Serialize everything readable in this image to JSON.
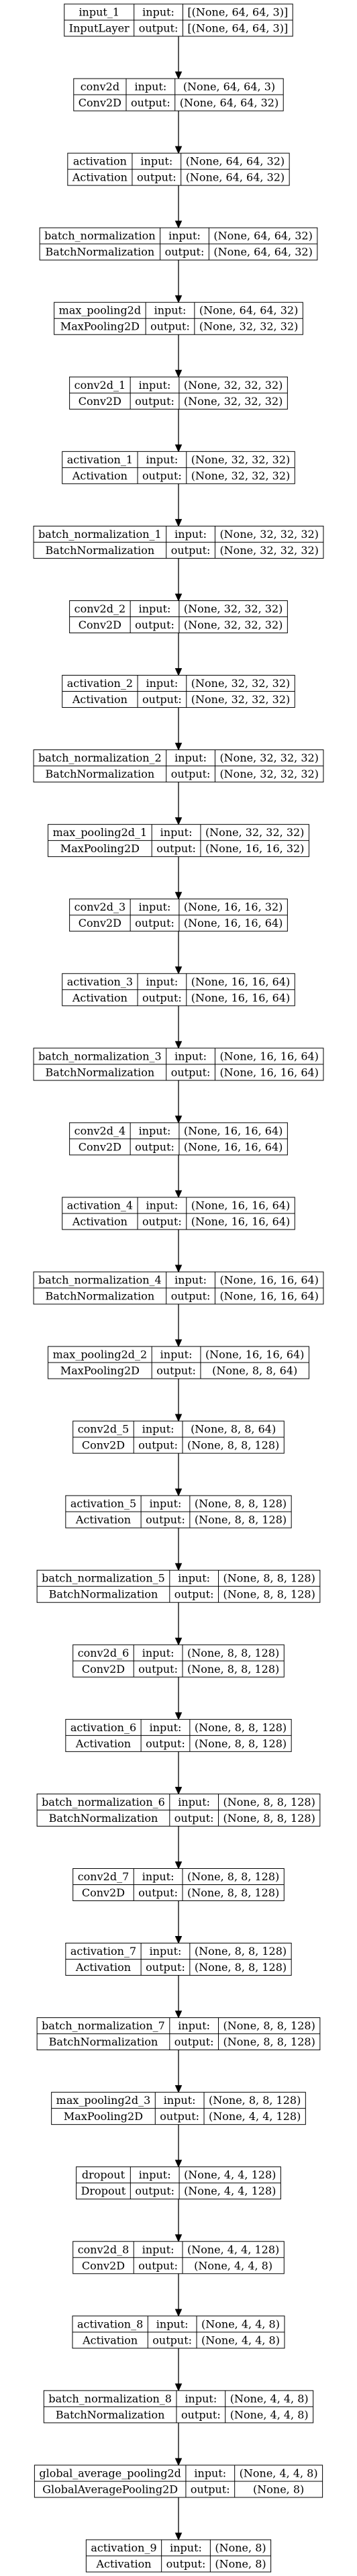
{
  "labels": {
    "input": "input:",
    "output": "output:"
  },
  "layers": [
    {
      "name": "input_1",
      "type": "InputLayer",
      "input": "[(None, 64, 64, 3)]",
      "output": "[(None, 64, 64, 3)]"
    },
    {
      "name": "conv2d",
      "type": "Conv2D",
      "input": "(None, 64, 64, 3)",
      "output": "(None, 64, 64, 32)"
    },
    {
      "name": "activation",
      "type": "Activation",
      "input": "(None, 64, 64, 32)",
      "output": "(None, 64, 64, 32)"
    },
    {
      "name": "batch_normalization",
      "type": "BatchNormalization",
      "input": "(None, 64, 64, 32)",
      "output": "(None, 64, 64, 32)"
    },
    {
      "name": "max_pooling2d",
      "type": "MaxPooling2D",
      "input": "(None, 64, 64, 32)",
      "output": "(None, 32, 32, 32)"
    },
    {
      "name": "conv2d_1",
      "type": "Conv2D",
      "input": "(None, 32, 32, 32)",
      "output": "(None, 32, 32, 32)"
    },
    {
      "name": "activation_1",
      "type": "Activation",
      "input": "(None, 32, 32, 32)",
      "output": "(None, 32, 32, 32)"
    },
    {
      "name": "batch_normalization_1",
      "type": "BatchNormalization",
      "input": "(None, 32, 32, 32)",
      "output": "(None, 32, 32, 32)"
    },
    {
      "name": "conv2d_2",
      "type": "Conv2D",
      "input": "(None, 32, 32, 32)",
      "output": "(None, 32, 32, 32)"
    },
    {
      "name": "activation_2",
      "type": "Activation",
      "input": "(None, 32, 32, 32)",
      "output": "(None, 32, 32, 32)"
    },
    {
      "name": "batch_normalization_2",
      "type": "BatchNormalization",
      "input": "(None, 32, 32, 32)",
      "output": "(None, 32, 32, 32)"
    },
    {
      "name": "max_pooling2d_1",
      "type": "MaxPooling2D",
      "input": "(None, 32, 32, 32)",
      "output": "(None, 16, 16, 32)"
    },
    {
      "name": "conv2d_3",
      "type": "Conv2D",
      "input": "(None, 16, 16, 32)",
      "output": "(None, 16, 16, 64)"
    },
    {
      "name": "activation_3",
      "type": "Activation",
      "input": "(None, 16, 16, 64)",
      "output": "(None, 16, 16, 64)"
    },
    {
      "name": "batch_normalization_3",
      "type": "BatchNormalization",
      "input": "(None, 16, 16, 64)",
      "output": "(None, 16, 16, 64)"
    },
    {
      "name": "conv2d_4",
      "type": "Conv2D",
      "input": "(None, 16, 16, 64)",
      "output": "(None, 16, 16, 64)"
    },
    {
      "name": "activation_4",
      "type": "Activation",
      "input": "(None, 16, 16, 64)",
      "output": "(None, 16, 16, 64)"
    },
    {
      "name": "batch_normalization_4",
      "type": "BatchNormalization",
      "input": "(None, 16, 16, 64)",
      "output": "(None, 16, 16, 64)"
    },
    {
      "name": "max_pooling2d_2",
      "type": "MaxPooling2D",
      "input": "(None, 16, 16, 64)",
      "output": "(None, 8, 8, 64)"
    },
    {
      "name": "conv2d_5",
      "type": "Conv2D",
      "input": "(None, 8, 8, 64)",
      "output": "(None, 8, 8, 128)"
    },
    {
      "name": "activation_5",
      "type": "Activation",
      "input": "(None, 8, 8, 128)",
      "output": "(None, 8, 8, 128)"
    },
    {
      "name": "batch_normalization_5",
      "type": "BatchNormalization",
      "input": "(None, 8, 8, 128)",
      "output": "(None, 8, 8, 128)"
    },
    {
      "name": "conv2d_6",
      "type": "Conv2D",
      "input": "(None, 8, 8, 128)",
      "output": "(None, 8, 8, 128)"
    },
    {
      "name": "activation_6",
      "type": "Activation",
      "input": "(None, 8, 8, 128)",
      "output": "(None, 8, 8, 128)"
    },
    {
      "name": "batch_normalization_6",
      "type": "BatchNormalization",
      "input": "(None, 8, 8, 128)",
      "output": "(None, 8, 8, 128)"
    },
    {
      "name": "conv2d_7",
      "type": "Conv2D",
      "input": "(None, 8, 8, 128)",
      "output": "(None, 8, 8, 128)"
    },
    {
      "name": "activation_7",
      "type": "Activation",
      "input": "(None, 8, 8, 128)",
      "output": "(None, 8, 8, 128)"
    },
    {
      "name": "batch_normalization_7",
      "type": "BatchNormalization",
      "input": "(None, 8, 8, 128)",
      "output": "(None, 8, 8, 128)"
    },
    {
      "name": "max_pooling2d_3",
      "type": "MaxPooling2D",
      "input": "(None, 8, 8, 128)",
      "output": "(None, 4, 4, 128)"
    },
    {
      "name": "dropout",
      "type": "Dropout",
      "input": "(None, 4, 4, 128)",
      "output": "(None, 4, 4, 128)"
    },
    {
      "name": "conv2d_8",
      "type": "Conv2D",
      "input": "(None, 4, 4, 128)",
      "output": "(None, 4, 4, 8)"
    },
    {
      "name": "activation_8",
      "type": "Activation",
      "input": "(None, 4, 4, 8)",
      "output": "(None, 4, 4, 8)"
    },
    {
      "name": "batch_normalization_8",
      "type": "BatchNormalization",
      "input": "(None, 4, 4, 8)",
      "output": "(None, 4, 4, 8)"
    },
    {
      "name": "global_average_pooling2d",
      "type": "GlobalAveragePooling2D",
      "input": "(None, 4, 4, 8)",
      "output": "(None, 8)"
    },
    {
      "name": "activation_9",
      "type": "Activation",
      "input": "(None, 8)",
      "output": "(None, 8)"
    }
  ]
}
